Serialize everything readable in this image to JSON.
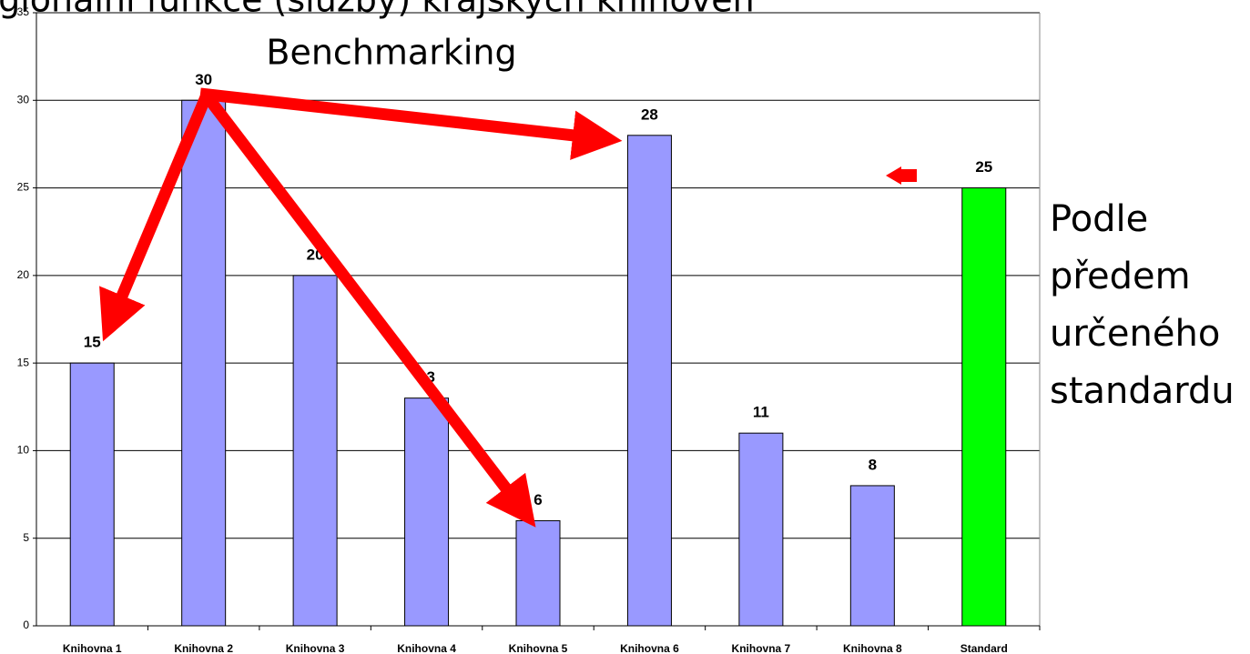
{
  "chart_data": {
    "type": "bar",
    "title": "Regionální funkce (služby) krajských knihoven",
    "subtitle": "Benchmarking",
    "annotation": [
      "Podle",
      "předem",
      "určeného",
      "standardu"
    ],
    "categories": [
      "Knihovna 1",
      "Knihovna 2",
      "Knihovna 3",
      "Knihovna 4",
      "Knihovna 5",
      "Knihovna 6",
      "Knihovna 7",
      "Knihovna 8",
      "Standard"
    ],
    "values": [
      15,
      30,
      20,
      13,
      6,
      28,
      11,
      8,
      25
    ],
    "colors": [
      "#9999ff",
      "#9999ff",
      "#9999ff",
      "#9999ff",
      "#9999ff",
      "#9999ff",
      "#9999ff",
      "#9999ff",
      "#00ff00"
    ],
    "ylim": [
      0,
      35
    ],
    "yticks": [
      0,
      5,
      10,
      15,
      20,
      25,
      30,
      35
    ],
    "grid": true
  }
}
